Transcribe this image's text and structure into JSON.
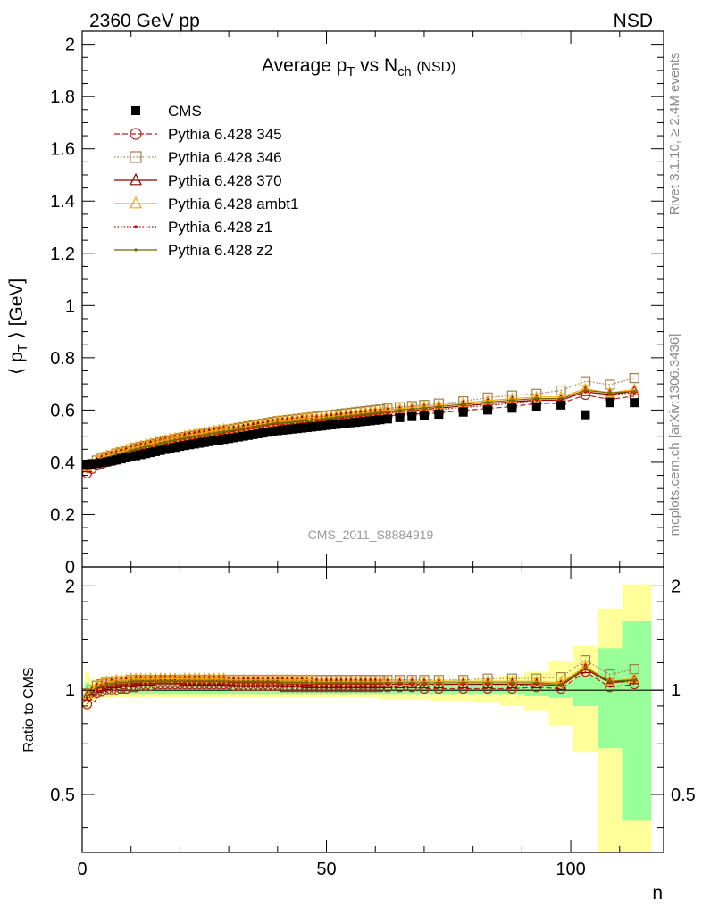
{
  "header": {
    "left": "2360 GeV pp",
    "right": "NSD"
  },
  "side_labels": {
    "rivet": "Rivet 3.1.10, ≥ 2.4M events",
    "mcplots": "mcplots.cern.ch [arXiv:1306.3436]"
  },
  "chart_data": [
    {
      "type": "scatter",
      "title": "Average p_T vs N_ch (NSD)",
      "ylabel": "⟨ p_T ⟩ [GeV]",
      "xlabel": "n",
      "watermark": "CMS_2011_S8884919",
      "xlim": [
        0,
        119
      ],
      "ylim": [
        0,
        2.05
      ],
      "xticks": [
        0,
        50,
        100
      ],
      "yticks": [
        0,
        0.2,
        0.4,
        0.6,
        0.8,
        1,
        1.2,
        1.4,
        1.6,
        1.8,
        2
      ],
      "ytick_labels": [
        "0",
        "0.2",
        "0.4",
        "0.6",
        "0.8",
        "1",
        "1.2",
        "1.4",
        "1.6",
        "1.8",
        "2"
      ],
      "legend_placement": "top-left",
      "x": [
        1,
        2,
        3,
        4,
        5,
        6,
        7,
        8,
        9,
        10,
        11,
        12,
        13,
        14,
        15,
        16,
        17,
        18,
        19,
        20,
        21,
        22,
        23,
        24,
        25,
        26,
        27,
        28,
        29,
        30,
        31,
        32,
        33,
        34,
        35,
        36,
        37,
        38,
        39,
        40,
        41,
        42,
        43,
        44,
        45,
        46,
        47,
        48,
        49,
        50,
        51,
        52,
        53,
        54,
        55,
        56,
        57,
        58,
        59,
        60,
        61,
        62.5,
        65,
        67.5,
        70,
        73,
        78,
        83,
        88,
        93,
        98,
        103,
        108,
        113
      ],
      "series": [
        {
          "name": "CMS",
          "color": "#000000",
          "marker": "square-filled",
          "line": "none",
          "values": [
            0.393,
            0.394,
            0.395,
            0.398,
            0.401,
            0.405,
            0.409,
            0.413,
            0.417,
            0.421,
            0.425,
            0.429,
            0.433,
            0.437,
            0.441,
            0.445,
            0.449,
            0.453,
            0.457,
            0.461,
            0.464,
            0.467,
            0.47,
            0.473,
            0.476,
            0.479,
            0.482,
            0.485,
            0.488,
            0.491,
            0.494,
            0.497,
            0.5,
            0.503,
            0.506,
            0.509,
            0.512,
            0.515,
            0.518,
            0.521,
            0.523,
            0.525,
            0.527,
            0.529,
            0.531,
            0.533,
            0.535,
            0.537,
            0.539,
            0.541,
            0.543,
            0.545,
            0.547,
            0.549,
            0.551,
            0.553,
            0.555,
            0.557,
            0.559,
            0.561,
            0.563,
            0.566,
            0.571,
            0.575,
            0.579,
            0.584,
            0.592,
            0.6,
            0.607,
            0.613,
            0.619,
            0.582,
            0.628,
            0.628
          ]
        },
        {
          "name": "Pythia 6.428 345",
          "color": "#b22222",
          "marker": "circle-open",
          "line": "dashed",
          "ratio": [
            0.91,
            0.95,
            0.98,
            0.99,
            1.0,
            1.0,
            1.0,
            1.01,
            1.01,
            1.02,
            1.02,
            1.03,
            1.03,
            1.03,
            1.04,
            1.04,
            1.04,
            1.04,
            1.04,
            1.04,
            1.04,
            1.04,
            1.04,
            1.04,
            1.04,
            1.04,
            1.04,
            1.04,
            1.04,
            1.04,
            1.03,
            1.03,
            1.03,
            1.03,
            1.03,
            1.03,
            1.03,
            1.03,
            1.03,
            1.03,
            1.02,
            1.02,
            1.02,
            1.02,
            1.02,
            1.02,
            1.02,
            1.02,
            1.02,
            1.02,
            1.02,
            1.02,
            1.02,
            1.02,
            1.02,
            1.02,
            1.02,
            1.02,
            1.02,
            1.02,
            1.02,
            1.02,
            1.02,
            1.02,
            1.01,
            1.01,
            1.01,
            1.01,
            1.01,
            1.02,
            1.01,
            1.13,
            1.02,
            1.04
          ]
        },
        {
          "name": "Pythia 6.428 346",
          "color": "#a0804a",
          "marker": "square-open",
          "line": "dotted",
          "ratio": [
            0.98,
            1.0,
            1.03,
            1.04,
            1.05,
            1.05,
            1.06,
            1.06,
            1.06,
            1.07,
            1.07,
            1.07,
            1.07,
            1.07,
            1.07,
            1.07,
            1.07,
            1.07,
            1.07,
            1.07,
            1.07,
            1.07,
            1.07,
            1.07,
            1.07,
            1.07,
            1.07,
            1.07,
            1.07,
            1.07,
            1.07,
            1.07,
            1.07,
            1.07,
            1.07,
            1.07,
            1.07,
            1.07,
            1.07,
            1.07,
            1.07,
            1.07,
            1.07,
            1.07,
            1.07,
            1.07,
            1.07,
            1.07,
            1.07,
            1.07,
            1.07,
            1.07,
            1.07,
            1.07,
            1.07,
            1.07,
            1.07,
            1.07,
            1.07,
            1.07,
            1.07,
            1.07,
            1.07,
            1.07,
            1.07,
            1.07,
            1.07,
            1.08,
            1.08,
            1.08,
            1.09,
            1.22,
            1.11,
            1.15
          ]
        },
        {
          "name": "Pythia 6.428 370",
          "color": "#8b0000",
          "marker": "triangle-open",
          "line": "solid",
          "ratio": [
            0.96,
            0.99,
            1.01,
            1.02,
            1.03,
            1.04,
            1.04,
            1.05,
            1.05,
            1.05,
            1.06,
            1.06,
            1.06,
            1.06,
            1.07,
            1.07,
            1.07,
            1.07,
            1.07,
            1.07,
            1.06,
            1.06,
            1.06,
            1.06,
            1.06,
            1.06,
            1.06,
            1.06,
            1.06,
            1.06,
            1.05,
            1.05,
            1.05,
            1.05,
            1.05,
            1.05,
            1.05,
            1.05,
            1.05,
            1.05,
            1.05,
            1.05,
            1.05,
            1.05,
            1.05,
            1.04,
            1.04,
            1.04,
            1.04,
            1.04,
            1.04,
            1.04,
            1.04,
            1.04,
            1.04,
            1.04,
            1.04,
            1.04,
            1.04,
            1.04,
            1.04,
            1.04,
            1.04,
            1.04,
            1.04,
            1.04,
            1.04,
            1.04,
            1.04,
            1.04,
            1.03,
            1.15,
            1.05,
            1.07
          ]
        },
        {
          "name": "Pythia 6.428 ambt1",
          "color": "#ffa500",
          "marker": "triangle-open",
          "line": "solid",
          "ratio": [
            0.97,
            1.0,
            1.03,
            1.05,
            1.06,
            1.06,
            1.07,
            1.07,
            1.07,
            1.08,
            1.08,
            1.08,
            1.08,
            1.08,
            1.08,
            1.08,
            1.08,
            1.08,
            1.08,
            1.08,
            1.08,
            1.08,
            1.08,
            1.08,
            1.08,
            1.08,
            1.08,
            1.08,
            1.08,
            1.07,
            1.07,
            1.07,
            1.07,
            1.07,
            1.07,
            1.07,
            1.07,
            1.07,
            1.07,
            1.07,
            1.07,
            1.07,
            1.07,
            1.07,
            1.07,
            1.07,
            1.07,
            1.06,
            1.06,
            1.06,
            1.06,
            1.06,
            1.06,
            1.06,
            1.06,
            1.06,
            1.06,
            1.06,
            1.06,
            1.06,
            1.06,
            1.06,
            1.06,
            1.06,
            1.06,
            1.06,
            1.06,
            1.06,
            1.06,
            1.06,
            1.05,
            1.17,
            1.06,
            1.08
          ]
        },
        {
          "name": "Pythia 6.428 z1",
          "color": "#cc0000",
          "marker": "dot",
          "line": "dotted",
          "ratio": [
            0.95,
            0.98,
            1.01,
            1.02,
            1.03,
            1.03,
            1.04,
            1.04,
            1.04,
            1.05,
            1.05,
            1.05,
            1.05,
            1.05,
            1.05,
            1.05,
            1.05,
            1.05,
            1.05,
            1.05,
            1.05,
            1.05,
            1.05,
            1.05,
            1.05,
            1.05,
            1.05,
            1.05,
            1.05,
            1.05,
            1.05,
            1.05,
            1.05,
            1.05,
            1.05,
            1.05,
            1.05,
            1.05,
            1.05,
            1.05,
            1.04,
            1.04,
            1.04,
            1.04,
            1.04,
            1.04,
            1.04,
            1.04,
            1.04,
            1.04,
            1.04,
            1.04,
            1.04,
            1.04,
            1.04,
            1.04,
            1.04,
            1.04,
            1.04,
            1.04,
            1.04,
            1.04,
            1.04,
            1.04,
            1.03,
            1.03,
            1.03,
            1.03,
            1.03,
            1.04,
            1.03,
            1.15,
            1.05,
            1.06
          ]
        },
        {
          "name": "Pythia 6.428 z2",
          "color": "#6b6b00",
          "marker": "dot",
          "line": "solid",
          "ratio": [
            0.96,
            0.99,
            1.02,
            1.03,
            1.04,
            1.04,
            1.05,
            1.05,
            1.05,
            1.06,
            1.06,
            1.06,
            1.06,
            1.06,
            1.06,
            1.06,
            1.06,
            1.06,
            1.06,
            1.06,
            1.06,
            1.06,
            1.06,
            1.06,
            1.06,
            1.06,
            1.06,
            1.06,
            1.06,
            1.06,
            1.06,
            1.06,
            1.06,
            1.06,
            1.06,
            1.06,
            1.06,
            1.06,
            1.06,
            1.06,
            1.05,
            1.05,
            1.05,
            1.05,
            1.05,
            1.05,
            1.05,
            1.05,
            1.05,
            1.05,
            1.05,
            1.05,
            1.05,
            1.05,
            1.05,
            1.05,
            1.05,
            1.05,
            1.05,
            1.05,
            1.05,
            1.05,
            1.05,
            1.05,
            1.05,
            1.05,
            1.05,
            1.05,
            1.05,
            1.05,
            1.04,
            1.16,
            1.06,
            1.07
          ]
        }
      ]
    },
    {
      "type": "line",
      "ylabel": "Ratio to CMS",
      "xlabel": "n",
      "xlim": [
        0,
        119
      ],
      "ylim": [
        0.34,
        2.27
      ],
      "ylog": true,
      "xticks": [
        0,
        50,
        100
      ],
      "xtick_labels": [
        "0",
        "50",
        "100"
      ],
      "yticks": [
        0.5,
        1,
        2
      ],
      "ytick_labels": [
        "0.5",
        "1",
        "2"
      ],
      "band_edges": [
        0.5,
        1.5,
        2.5,
        3.5,
        4.5,
        5.5,
        6.5,
        7.5,
        8.5,
        9.5,
        10.5,
        11.5,
        12.5,
        13.5,
        14.5,
        15.5,
        16.5,
        17.5,
        18.5,
        19.5,
        20.5,
        21.5,
        22.5,
        23.5,
        24.5,
        25.5,
        26.5,
        27.5,
        28.5,
        29.5,
        30.5,
        31.5,
        32.5,
        33.5,
        34.5,
        35.5,
        36.5,
        37.5,
        38.5,
        39.5,
        40.5,
        41.5,
        42.5,
        43.5,
        44.5,
        45.5,
        46.5,
        47.5,
        48.5,
        49.5,
        50.5,
        51.5,
        52.5,
        53.5,
        54.5,
        55.5,
        56.5,
        57.5,
        58.5,
        59.5,
        60.5,
        61.5,
        63.5,
        66.5,
        68.5,
        71.5,
        75.5,
        80.5,
        85.5,
        90.5,
        95.5,
        100.5,
        105.5,
        110.5,
        116.5
      ],
      "stat_band": [
        0.05,
        0.04,
        0.04,
        0.03,
        0.03,
        0.03,
        0.03,
        0.03,
        0.03,
        0.03,
        0.03,
        0.03,
        0.03,
        0.03,
        0.03,
        0.03,
        0.03,
        0.03,
        0.03,
        0.03,
        0.03,
        0.03,
        0.03,
        0.03,
        0.03,
        0.03,
        0.03,
        0.03,
        0.03,
        0.03,
        0.03,
        0.03,
        0.03,
        0.03,
        0.03,
        0.03,
        0.03,
        0.03,
        0.03,
        0.03,
        0.03,
        0.03,
        0.03,
        0.03,
        0.03,
        0.03,
        0.03,
        0.03,
        0.03,
        0.03,
        0.03,
        0.03,
        0.03,
        0.03,
        0.03,
        0.03,
        0.03,
        0.03,
        0.03,
        0.03,
        0.03,
        0.03,
        0.03,
        0.03,
        0.03,
        0.03,
        0.03,
        0.03,
        0.03,
        0.04,
        0.05,
        0.1,
        0.32,
        0.58
      ],
      "tot_band": [
        0.13,
        0.08,
        0.06,
        0.05,
        0.05,
        0.05,
        0.05,
        0.05,
        0.05,
        0.05,
        0.05,
        0.05,
        0.05,
        0.05,
        0.05,
        0.05,
        0.05,
        0.05,
        0.05,
        0.05,
        0.05,
        0.05,
        0.05,
        0.05,
        0.05,
        0.05,
        0.05,
        0.05,
        0.05,
        0.05,
        0.05,
        0.05,
        0.05,
        0.05,
        0.05,
        0.05,
        0.05,
        0.05,
        0.05,
        0.05,
        0.05,
        0.05,
        0.05,
        0.05,
        0.05,
        0.05,
        0.05,
        0.05,
        0.05,
        0.05,
        0.05,
        0.05,
        0.05,
        0.05,
        0.05,
        0.05,
        0.05,
        0.05,
        0.05,
        0.05,
        0.06,
        0.06,
        0.06,
        0.06,
        0.06,
        0.07,
        0.07,
        0.08,
        0.1,
        0.13,
        0.21,
        0.34,
        0.72,
        1.02
      ],
      "colors": {
        "stat_band": "#99ff99",
        "tot_band": "#ffff99",
        "reference_line": "#000000"
      }
    }
  ]
}
